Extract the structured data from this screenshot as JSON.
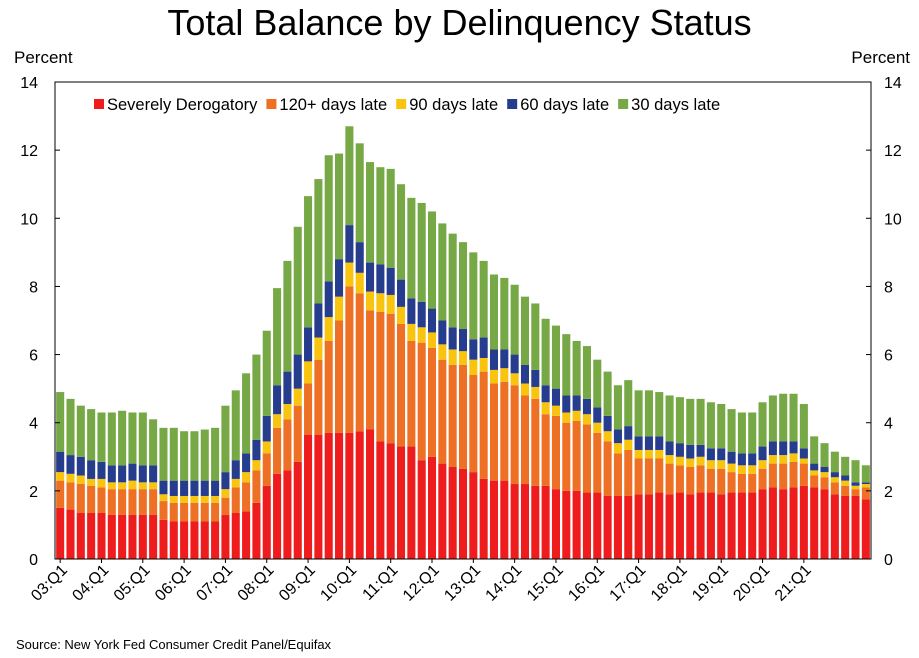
{
  "chart_data": {
    "type": "bar",
    "stacked": true,
    "title": "Total Balance by Delinquency Status",
    "ylabel_left": "Percent",
    "ylabel_right": "Percent",
    "ylim": [
      0,
      14
    ],
    "yticks": [
      0,
      2,
      4,
      6,
      8,
      10,
      12,
      14
    ],
    "xtick_labels": [
      "03:Q1",
      "04:Q1",
      "05:Q1",
      "06:Q1",
      "07:Q1",
      "08:Q1",
      "09:Q1",
      "10:Q1",
      "11:Q1",
      "12:Q1",
      "13:Q1",
      "14:Q1",
      "15:Q1",
      "16:Q1",
      "17:Q1",
      "18:Q1",
      "19:Q1",
      "20:Q1",
      "21:Q1"
    ],
    "legend_position": "top",
    "series": [
      {
        "name": "Severely Derogatory",
        "color": "#ee1c1c",
        "values": [
          1.5,
          1.45,
          1.35,
          1.35,
          1.35,
          1.3,
          1.3,
          1.3,
          1.3,
          1.3,
          1.15,
          1.1,
          1.1,
          1.1,
          1.1,
          1.1,
          1.3,
          1.35,
          1.4,
          1.65,
          2.15,
          2.5,
          2.6,
          2.85,
          3.65,
          3.65,
          3.7,
          3.7,
          3.7,
          3.75,
          3.8,
          3.45,
          3.4,
          3.3,
          3.3,
          2.9,
          3.0,
          2.8,
          2.7,
          2.65,
          2.55,
          2.35,
          2.3,
          2.3,
          2.2,
          2.2,
          2.15,
          2.15,
          2.05,
          2.0,
          2.0,
          1.95,
          1.95,
          1.85,
          1.85,
          1.85,
          1.9,
          1.9,
          1.95,
          1.9,
          1.95,
          1.9,
          1.95,
          1.95,
          1.9,
          1.95,
          1.95,
          1.95,
          2.05,
          2.1,
          2.05,
          2.1,
          2.15,
          2.1,
          2.05,
          1.9,
          1.85,
          1.85,
          1.75
        ]
      },
      {
        "name": "120+ days late",
        "color": "#ed7025",
        "values": [
          0.8,
          0.8,
          0.85,
          0.8,
          0.75,
          0.75,
          0.75,
          0.75,
          0.75,
          0.75,
          0.55,
          0.55,
          0.55,
          0.55,
          0.55,
          0.55,
          0.5,
          0.75,
          0.85,
          0.95,
          0.95,
          1.35,
          1.5,
          1.65,
          1.5,
          2.2,
          2.7,
          3.3,
          4.3,
          4.05,
          3.5,
          3.8,
          3.8,
          3.6,
          3.1,
          3.45,
          3.2,
          3.05,
          3.0,
          3.05,
          2.85,
          3.15,
          2.85,
          2.9,
          2.9,
          2.6,
          2.55,
          2.1,
          2.15,
          2.0,
          2.05,
          2.0,
          1.75,
          1.6,
          1.25,
          1.35,
          1.05,
          1.05,
          1.0,
          0.9,
          0.8,
          0.8,
          0.8,
          0.7,
          0.75,
          0.6,
          0.55,
          0.55,
          0.6,
          0.7,
          0.75,
          0.75,
          0.65,
          0.35,
          0.35,
          0.35,
          0.3,
          0.2,
          0.35
        ]
      },
      {
        "name": "90 days late",
        "color": "#f8c40f",
        "values": [
          0.25,
          0.25,
          0.25,
          0.2,
          0.25,
          0.2,
          0.2,
          0.25,
          0.2,
          0.2,
          0.2,
          0.2,
          0.2,
          0.2,
          0.2,
          0.2,
          0.25,
          0.25,
          0.3,
          0.3,
          0.35,
          0.4,
          0.45,
          0.5,
          0.65,
          0.65,
          0.7,
          0.7,
          0.7,
          0.6,
          0.55,
          0.55,
          0.55,
          0.5,
          0.5,
          0.45,
          0.45,
          0.45,
          0.45,
          0.4,
          0.45,
          0.4,
          0.4,
          0.4,
          0.35,
          0.35,
          0.35,
          0.35,
          0.3,
          0.3,
          0.3,
          0.3,
          0.3,
          0.3,
          0.3,
          0.3,
          0.25,
          0.25,
          0.25,
          0.25,
          0.25,
          0.25,
          0.25,
          0.25,
          0.25,
          0.25,
          0.25,
          0.25,
          0.25,
          0.25,
          0.25,
          0.25,
          0.15,
          0.15,
          0.15,
          0.15,
          0.15,
          0.1,
          0.1
        ]
      },
      {
        "name": "60 days late",
        "color": "#253d8c",
        "values": [
          0.6,
          0.55,
          0.55,
          0.55,
          0.5,
          0.5,
          0.5,
          0.5,
          0.5,
          0.5,
          0.4,
          0.45,
          0.45,
          0.45,
          0.45,
          0.45,
          0.5,
          0.55,
          0.55,
          0.6,
          0.75,
          0.85,
          0.95,
          1.0,
          1.0,
          1.0,
          1.05,
          1.1,
          1.1,
          0.9,
          0.85,
          0.85,
          0.8,
          0.8,
          0.75,
          0.75,
          0.7,
          0.7,
          0.65,
          0.65,
          0.6,
          0.6,
          0.6,
          0.55,
          0.55,
          0.55,
          0.5,
          0.5,
          0.5,
          0.5,
          0.45,
          0.45,
          0.45,
          0.45,
          0.4,
          0.4,
          0.4,
          0.4,
          0.4,
          0.4,
          0.4,
          0.4,
          0.35,
          0.35,
          0.35,
          0.35,
          0.35,
          0.35,
          0.4,
          0.4,
          0.4,
          0.35,
          0.3,
          0.2,
          0.15,
          0.15,
          0.15,
          0.1,
          0.05
        ]
      },
      {
        "name": "30 days late",
        "color": "#77a846",
        "values": [
          1.75,
          1.65,
          1.5,
          1.5,
          1.45,
          1.55,
          1.6,
          1.5,
          1.55,
          1.35,
          1.55,
          1.55,
          1.45,
          1.45,
          1.5,
          1.55,
          1.95,
          2.05,
          2.35,
          2.5,
          2.5,
          2.85,
          3.25,
          3.75,
          3.85,
          3.65,
          3.7,
          3.1,
          2.9,
          2.9,
          2.95,
          2.85,
          2.9,
          2.8,
          2.95,
          2.9,
          2.85,
          2.85,
          2.75,
          2.55,
          2.55,
          2.25,
          2.2,
          2.1,
          2.05,
          2.0,
          1.95,
          1.95,
          1.85,
          1.8,
          1.6,
          1.55,
          1.4,
          1.3,
          1.3,
          1.35,
          1.35,
          1.35,
          1.3,
          1.35,
          1.35,
          1.35,
          1.35,
          1.35,
          1.3,
          1.25,
          1.2,
          1.2,
          1.3,
          1.35,
          1.4,
          1.4,
          1.3,
          0.8,
          0.7,
          0.6,
          0.55,
          0.65,
          0.5
        ]
      }
    ]
  },
  "source_text": "Source: New York Fed Consumer Credit Panel/Equifax"
}
